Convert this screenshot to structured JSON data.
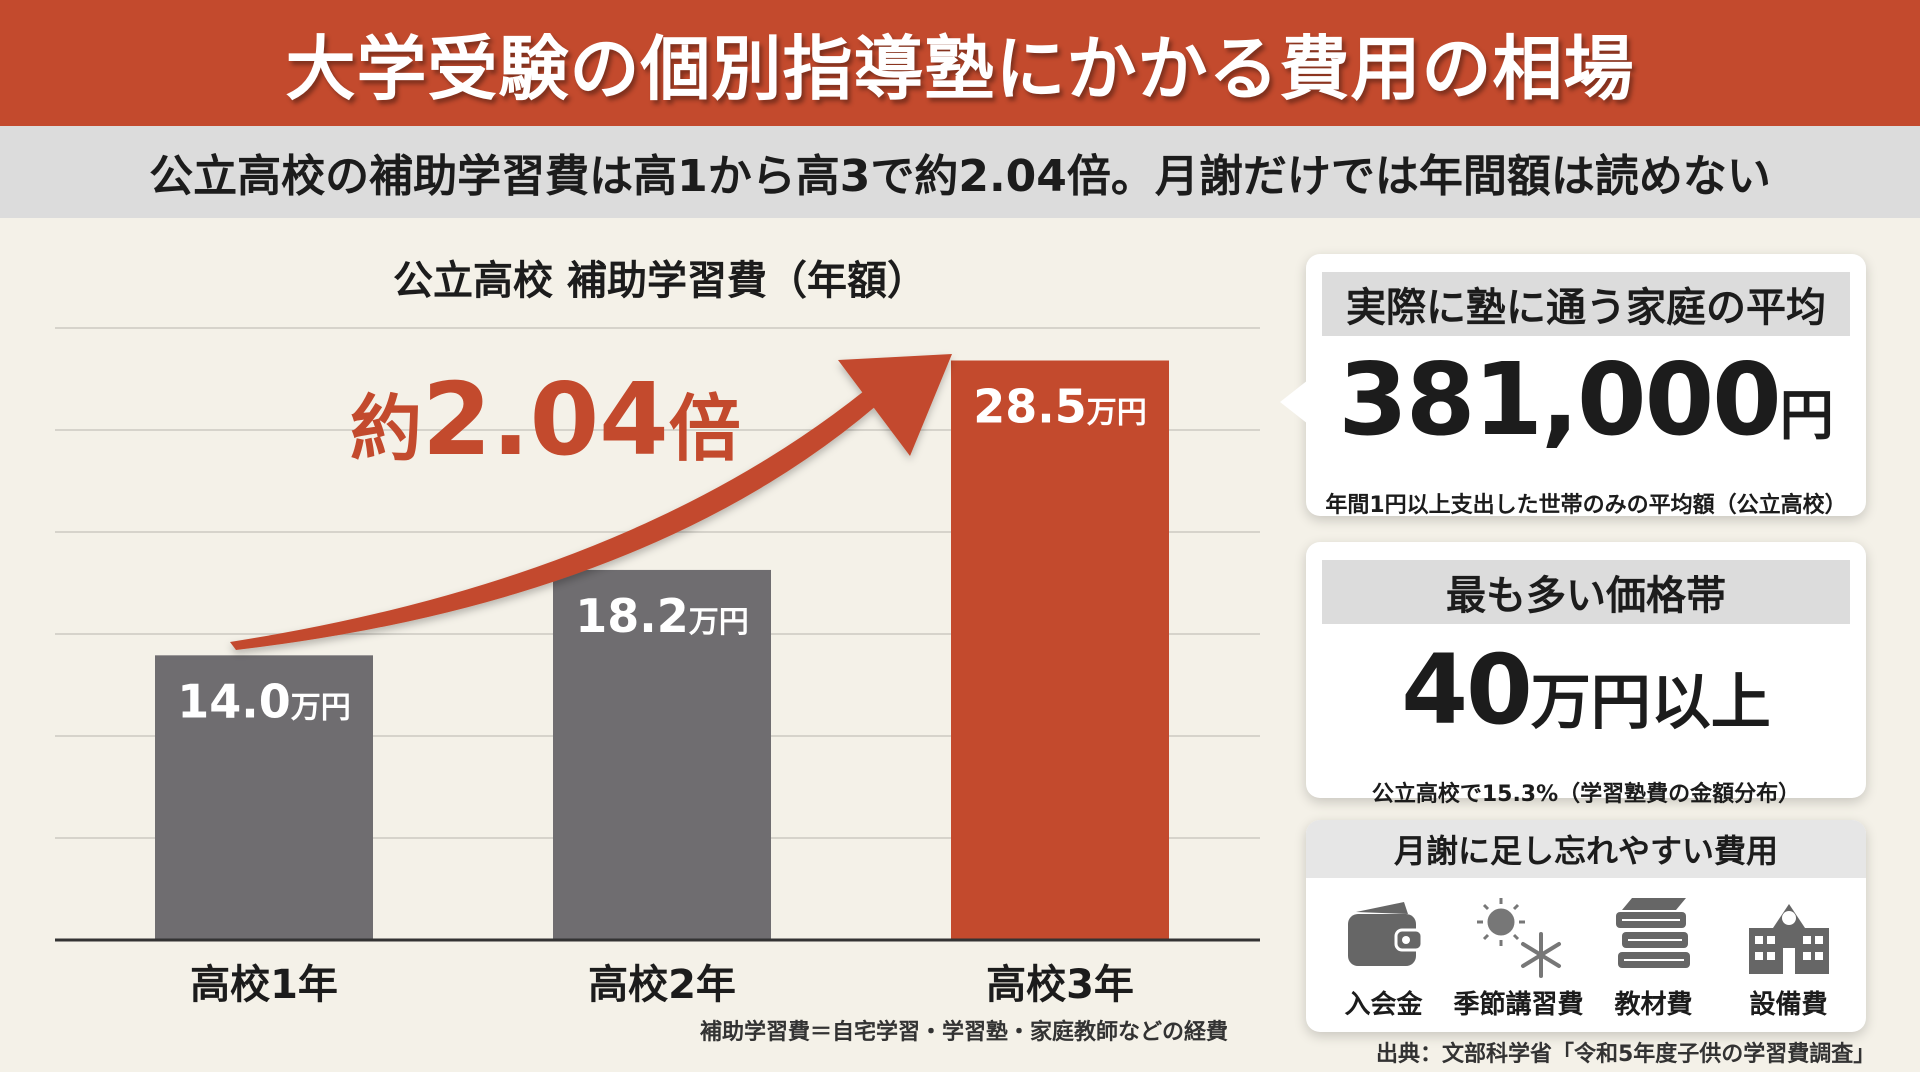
{
  "header": {
    "title": "大学受験の個別指導塾にかかる費用の相場",
    "subtitle": "公立高校の補助学習費は高1から高3で約2.04倍。月謝だけでは年間額は読めない"
  },
  "chart_data": {
    "type": "bar",
    "title": "公立高校 補助学習費（年額）",
    "categories": [
      "高校1年",
      "高校2年",
      "高校3年"
    ],
    "values": [
      14.0,
      18.2,
      28.5
    ],
    "value_labels": [
      "14.0",
      "18.2",
      "28.5"
    ],
    "unit": "万円",
    "ylim": [
      0,
      30
    ],
    "grid": true,
    "colors": [
      "#6f6d70",
      "#6f6d70",
      "#c34a2d"
    ],
    "annotation": {
      "prefix": "約",
      "number": "2.04",
      "suffix": "倍"
    },
    "footnote": "補助学習費＝自宅学習・学習塾・家庭教師などの経費"
  },
  "cards": {
    "average": {
      "header": "実際に塾に通う家庭の平均",
      "value": "381,000",
      "unit": "円",
      "note": "年間1円以上支出した世帯のみの平均額（公立高校）"
    },
    "price_band": {
      "header": "最も多い価格帯",
      "value": "40",
      "unit": "万円以上",
      "note": "公立高校で15.3%（学習塾費の金額分布）"
    },
    "extra_costs": {
      "header": "月謝に足し忘れやすい費用",
      "items": [
        {
          "icon": "wallet-icon",
          "label": "入会金"
        },
        {
          "icon": "sun-snowflake-icon",
          "label": "季節講習費"
        },
        {
          "icon": "books-icon",
          "label": "教材費"
        },
        {
          "icon": "school-building-icon",
          "label": "設備費"
        }
      ]
    }
  },
  "source": "出典：文部科学省「令和5年度子供の学習費調査」"
}
